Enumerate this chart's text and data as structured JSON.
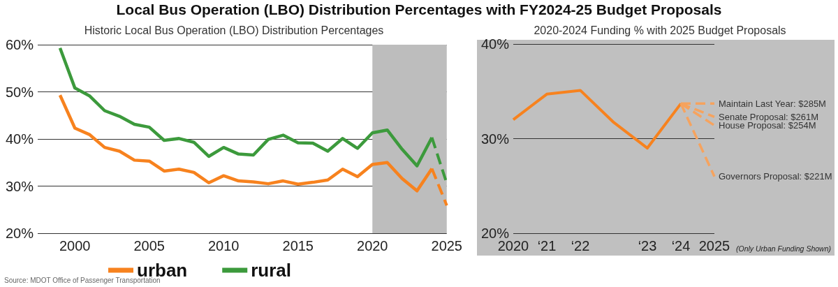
{
  "chart_data": [
    {
      "type": "line",
      "title": "Local Bus Operation (LBO) Distribution Percentages with FY2024-25 Budget Proposals",
      "subtitle": "Historic Local Bus Operation (LBO) Distribution Percentages",
      "x": [
        1999,
        2000,
        2001,
        2002,
        2003,
        2004,
        2005,
        2006,
        2007,
        2008,
        2009,
        2010,
        2011,
        2012,
        2013,
        2014,
        2015,
        2016,
        2017,
        2018,
        2019,
        2020,
        2021,
        2022,
        2023,
        2024,
        2025
      ],
      "series": [
        {
          "name": "urban",
          "color": "#f7821e",
          "values": [
            49.3,
            42.3,
            40.9,
            38.2,
            37.4,
            35.5,
            35.3,
            33.2,
            33.6,
            32.9,
            30.7,
            32.2,
            31.1,
            30.9,
            30.5,
            31.1,
            30.4,
            30.8,
            31.3,
            33.6,
            32.0,
            34.6,
            35.0,
            31.6,
            29.0,
            33.7,
            null
          ]
        },
        {
          "name": "rural",
          "color": "#3c9a3c",
          "values": [
            59.3,
            50.8,
            49.1,
            46.0,
            44.8,
            43.1,
            42.5,
            39.7,
            40.1,
            39.3,
            36.3,
            38.2,
            36.8,
            36.6,
            39.9,
            40.8,
            39.2,
            39.1,
            37.4,
            40.1,
            38.0,
            41.3,
            41.9,
            37.8,
            34.3,
            40.3,
            null
          ]
        },
        {
          "color": "#f7821e",
          "line_style": "dashed",
          "values": [
            null,
            null,
            null,
            null,
            null,
            null,
            null,
            null,
            null,
            null,
            null,
            null,
            null,
            null,
            null,
            null,
            null,
            null,
            null,
            null,
            null,
            null,
            null,
            null,
            null,
            33.7,
            25.9
          ]
        },
        {
          "color": "#3c9a3c",
          "line_style": "dashed",
          "values": [
            null,
            null,
            null,
            null,
            null,
            null,
            null,
            null,
            null,
            null,
            null,
            null,
            null,
            null,
            null,
            null,
            null,
            null,
            null,
            null,
            null,
            null,
            null,
            null,
            null,
            40.3,
            30.6
          ]
        }
      ],
      "xlim": [
        1997.5,
        2025
      ],
      "xticks": [
        2000,
        2005,
        2010,
        2015,
        2020,
        2025
      ],
      "ylim": [
        20,
        60
      ],
      "yticks": [
        {
          "value": 20,
          "label": "20%"
        },
        {
          "value": 30,
          "label": "30%"
        },
        {
          "value": 40,
          "label": "40%"
        },
        {
          "value": 50,
          "label": "50%"
        },
        {
          "value": 60,
          "label": "60%"
        }
      ],
      "grid": "y",
      "legend": "bottom",
      "marker": "none",
      "bands": [
        {
          "axis": "x",
          "from": 2020,
          "to": 2025,
          "color": "#bdbdbd"
        }
      ],
      "annotations": [
        "Source: MDOT Office of Passenger Transportation"
      ]
    },
    {
      "type": "line",
      "title": "2020-2024 Funding % with 2025 Budget Proposals",
      "categories": [
        "2020",
        "‘21",
        "‘22",
        null,
        "‘23",
        "‘24",
        "2025"
      ],
      "series": [
        {
          "color": "#f7821e",
          "values": [
            32.0,
            34.7,
            35.1,
            31.7,
            29.0,
            33.7,
            null
          ]
        },
        {
          "name": "Maintain Last Year: $285M",
          "color": "#f6a35e",
          "line_style": "dashed",
          "values": [
            null,
            null,
            null,
            null,
            null,
            33.7,
            33.7
          ]
        },
        {
          "name": "Senate Proposal: $261M",
          "color": "#f6a35e",
          "line_style": "dashed",
          "values": [
            null,
            null,
            null,
            null,
            null,
            33.7,
            32.3
          ]
        },
        {
          "name": "House Proposal: $254M",
          "color": "#f6a35e",
          "line_style": "dashed",
          "values": [
            null,
            null,
            null,
            null,
            null,
            33.7,
            31.4
          ]
        },
        {
          "name": "Governors Proposal: $221M",
          "color": "#f6a35e",
          "line_style": "dashed",
          "values": [
            null,
            null,
            null,
            null,
            null,
            33.7,
            26.0
          ]
        }
      ],
      "ylim": [
        20,
        40
      ],
      "yticks": [
        {
          "value": 20,
          "label": "20%"
        },
        {
          "value": 30,
          "label": "30%"
        },
        {
          "value": 40,
          "label": "40%"
        }
      ],
      "grid": "y",
      "marker": "none",
      "annotations": [
        "(Only Urban Funding Shown)"
      ]
    }
  ]
}
